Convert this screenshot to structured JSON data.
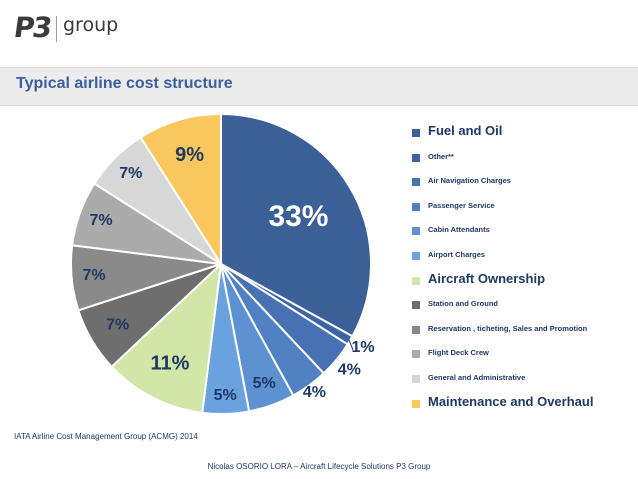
{
  "logo": {
    "mark": "P3",
    "word": "group"
  },
  "header": {
    "title": "Typical airline cost structure"
  },
  "chart_data": {
    "type": "pie",
    "categories": [
      "Fuel and Oil",
      "Other**",
      "Air Navigation Charges",
      "Passenger Service",
      "Cabin Attendants",
      "Airport Charges",
      "Aircraft Ownership",
      "Station and Ground",
      "Reservation , ticheting, Sales and Promotion",
      "Flight Deck Crew",
      "General and Administrative",
      "Maintenance and Overhaul"
    ],
    "values": [
      33,
      1,
      4,
      4,
      5,
      5,
      11,
      7,
      7,
      7,
      7,
      9
    ],
    "labels": [
      "33%",
      "1%",
      "4%",
      "4%",
      "5%",
      "5%",
      "11%",
      "7%",
      "7%",
      "7%",
      "7%",
      "9%"
    ],
    "colors": [
      "#3b5f97",
      "#3e65a3",
      "#4771b3",
      "#5281c3",
      "#5e91d1",
      "#6aa1df",
      "#d2e6a8",
      "#6e6e6e",
      "#8a8a8a",
      "#ababab",
      "#d7d7d7",
      "#fac75e"
    ],
    "legend_emphasis": [
      true,
      false,
      false,
      false,
      false,
      false,
      true,
      false,
      false,
      false,
      false,
      true
    ],
    "legend_position": "right",
    "start": "top",
    "direction": "clockwise",
    "title": ""
  },
  "source": "IATA Airline Cost Management Group (ACMG) 2014",
  "footer": "Nicolas OSORIO LORA – Aircraft Lifecycle Solutions P3 Group"
}
